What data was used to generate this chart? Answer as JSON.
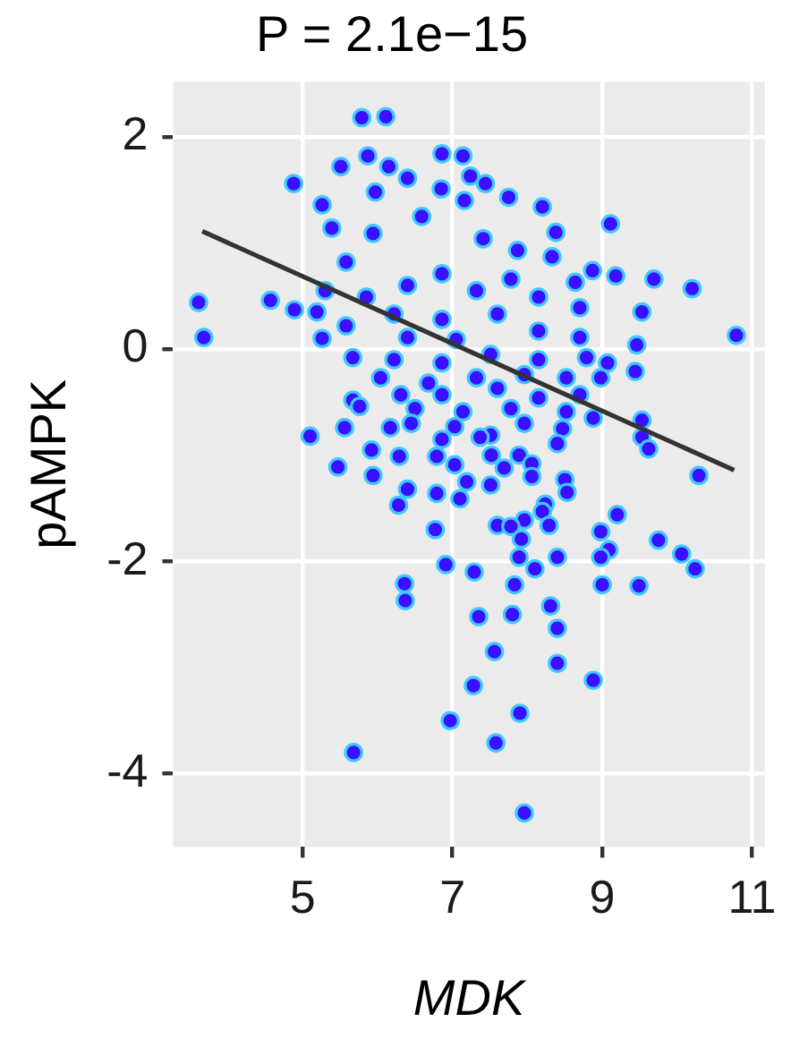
{
  "chart_data": {
    "type": "scatter",
    "title": "P = 2.1e−15",
    "xlabel": "MDK",
    "ylabel": "pAMPK",
    "xlim": [
      3.27,
      11.17
    ],
    "ylim": [
      -4.69,
      2.52
    ],
    "xticks": [
      5,
      7,
      9,
      11
    ],
    "yticks": [
      -4,
      -2,
      0,
      2
    ],
    "grid": true,
    "legend": false,
    "marker": "circle",
    "series": [
      {
        "color": "#3a10ff",
        "x": [
          5.79,
          6.11,
          5.87,
          6.86,
          7.14,
          5.51,
          6.15,
          4.88,
          6.4,
          7.24,
          7.44,
          7.75,
          8.2,
          9.11,
          5.26,
          5.97,
          6.85,
          7.16,
          8.38,
          3.61,
          3.68,
          4.57,
          4.89,
          5.19,
          5.26,
          8.87,
          9.18,
          9.69,
          10.2,
          9.53,
          10.79,
          9.46,
          8.64,
          5.39,
          5.58,
          5.94,
          6.59,
          7.41,
          7.87,
          8.33,
          5.3,
          5.85,
          6.4,
          6.86,
          7.32,
          7.78,
          8.15,
          8.7,
          5.58,
          6.22,
          6.86,
          7.6,
          8.15,
          8.7,
          6.4,
          7.05,
          5.67,
          6.22,
          6.86,
          7.51,
          8.15,
          8.79,
          9.07,
          9.44,
          6.04,
          6.68,
          7.32,
          7.96,
          8.52,
          8.98,
          5.67,
          6.31,
          6.86,
          7.6,
          8.15,
          8.7,
          5.76,
          6.5,
          7.14,
          7.78,
          8.52,
          8.88,
          9.53,
          5.1,
          5.56,
          6.17,
          6.45,
          7.03,
          7.51,
          7.96,
          8.47,
          6.86,
          7.37,
          8.4,
          9.53,
          9.62,
          5.92,
          6.29,
          6.79,
          7.03,
          7.52,
          7.89,
          8.06,
          5.47,
          5.94,
          7.69,
          8.06,
          8.5,
          7.19,
          7.51,
          10.29,
          6.4,
          6.79,
          7.1,
          8.53,
          6.28,
          8.24,
          8.2,
          9.2,
          7.96,
          8.29,
          7.6,
          6.77,
          7.78,
          8.98,
          7.92,
          9.09,
          9.75,
          8.98,
          10.06,
          7.89,
          8.4,
          10.24,
          6.91,
          7.29,
          8.1,
          6.36,
          7.83,
          9.0,
          9.49,
          6.37,
          7.35,
          7.8,
          8.31,
          8.4,
          7.56,
          8.4,
          8.88,
          7.28,
          6.97,
          7.9,
          7.58,
          5.68,
          7.96
        ],
        "values": [
          2.18,
          2.19,
          1.82,
          1.84,
          1.82,
          1.72,
          1.72,
          1.56,
          1.61,
          1.63,
          1.56,
          1.43,
          1.34,
          1.18,
          1.36,
          1.48,
          1.51,
          1.4,
          1.1,
          0.44,
          0.11,
          0.46,
          0.37,
          0.35,
          0.1,
          0.74,
          0.69,
          0.66,
          0.57,
          0.35,
          0.13,
          0.04,
          0.63,
          1.14,
          0.82,
          1.09,
          1.25,
          1.04,
          0.93,
          0.87,
          0.55,
          0.49,
          0.6,
          0.71,
          0.55,
          0.66,
          0.49,
          0.39,
          0.22,
          0.33,
          0.28,
          0.33,
          0.17,
          0.11,
          0.11,
          0.09,
          -0.08,
          -0.1,
          -0.13,
          -0.05,
          -0.1,
          -0.08,
          -0.13,
          -0.21,
          -0.27,
          -0.32,
          -0.27,
          -0.24,
          -0.27,
          -0.27,
          -0.48,
          -0.43,
          -0.43,
          -0.37,
          -0.46,
          -0.43,
          -0.54,
          -0.56,
          -0.59,
          -0.56,
          -0.59,
          -0.65,
          -0.67,
          -0.82,
          -0.74,
          -0.74,
          -0.7,
          -0.73,
          -0.81,
          -0.7,
          -0.75,
          -0.85,
          -0.83,
          -0.89,
          -0.83,
          -0.94,
          -0.95,
          -1.01,
          -1.01,
          -1.09,
          -1.0,
          -1.0,
          -1.08,
          -1.11,
          -1.19,
          -1.12,
          -1.2,
          -1.23,
          -1.25,
          -1.28,
          -1.19,
          -1.32,
          -1.36,
          -1.41,
          -1.35,
          -1.47,
          -1.46,
          -1.53,
          -1.56,
          -1.61,
          -1.66,
          -1.66,
          -1.7,
          -1.67,
          -1.72,
          -1.79,
          -1.89,
          -1.8,
          -1.96,
          -1.93,
          -1.96,
          -1.96,
          -2.07,
          -2.03,
          -2.1,
          -2.07,
          -2.21,
          -2.22,
          -2.22,
          -2.23,
          -2.37,
          -2.52,
          -2.5,
          -2.42,
          -2.63,
          -2.85,
          -2.96,
          -3.12,
          -3.17,
          -3.5,
          -3.43,
          -3.71,
          -3.8,
          -4.37
        ]
      },
      {
        "type": "line",
        "color": "#333333",
        "marker": "none",
        "x": [
          3.66,
          10.76
        ],
        "values": [
          1.11,
          -1.14
        ]
      }
    ]
  }
}
